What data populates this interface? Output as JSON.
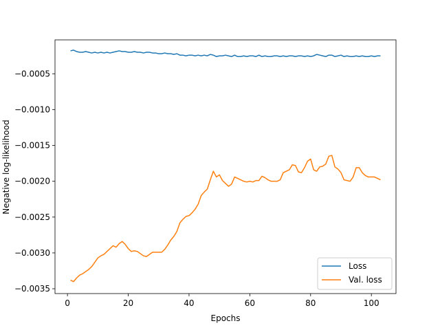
{
  "chart_data": {
    "type": "line",
    "xlabel": "Epochs",
    "ylabel": "Negative log-likelihood",
    "x": [
      1,
      2,
      3,
      4,
      5,
      6,
      7,
      8,
      9,
      10,
      11,
      12,
      13,
      14,
      15,
      16,
      17,
      18,
      19,
      20,
      21,
      22,
      23,
      24,
      25,
      26,
      27,
      28,
      29,
      30,
      31,
      32,
      33,
      34,
      35,
      36,
      37,
      38,
      39,
      40,
      41,
      42,
      43,
      44,
      45,
      46,
      47,
      48,
      49,
      50,
      51,
      52,
      53,
      54,
      55,
      56,
      57,
      58,
      59,
      60,
      61,
      62,
      63,
      64,
      65,
      66,
      67,
      68,
      69,
      70,
      71,
      72,
      73,
      74,
      75,
      76,
      77,
      78,
      79,
      80,
      81,
      82,
      83,
      84,
      85,
      86,
      87,
      88,
      89,
      90,
      91,
      92,
      93,
      94,
      95,
      96,
      97,
      98,
      99,
      100,
      101,
      102,
      103
    ],
    "series": [
      {
        "name": "Loss",
        "color": "#1f77b4",
        "values": [
          -0.00018,
          -0.00017,
          -0.00019,
          -0.0002,
          -0.0002,
          -0.00019,
          -0.0002,
          -0.00021,
          -0.0002,
          -0.00021,
          -0.0002,
          -0.00021,
          -0.0002,
          -0.00021,
          -0.0002,
          -0.00019,
          -0.00018,
          -0.00019,
          -0.00019,
          -0.0002,
          -0.0002,
          -0.00019,
          -0.0002,
          -0.0002,
          -0.00021,
          -0.0002,
          -0.0002,
          -0.00021,
          -0.00021,
          -0.00022,
          -0.00022,
          -0.00021,
          -0.00022,
          -0.00022,
          -0.00023,
          -0.00022,
          -0.00024,
          -0.00024,
          -0.00025,
          -0.00024,
          -0.00024,
          -0.00025,
          -0.00024,
          -0.00025,
          -0.00024,
          -0.00025,
          -0.00023,
          -0.00024,
          -0.00026,
          -0.00025,
          -0.00025,
          -0.00024,
          -0.00025,
          -0.00026,
          -0.00024,
          -0.00026,
          -0.00026,
          -0.00025,
          -0.00026,
          -0.00025,
          -0.00025,
          -0.00026,
          -0.00024,
          -0.00026,
          -0.00025,
          -0.00026,
          -0.00026,
          -0.00025,
          -0.00025,
          -0.00026,
          -0.00025,
          -0.00026,
          -0.00025,
          -0.00025,
          -0.00026,
          -0.00025,
          -0.00025,
          -0.00026,
          -0.00025,
          -0.00026,
          -0.00025,
          -0.00023,
          -0.00024,
          -0.00025,
          -0.00026,
          -0.00024,
          -0.00024,
          -0.00026,
          -0.00025,
          -0.00024,
          -0.00026,
          -0.00025,
          -0.00026,
          -0.00026,
          -0.00025,
          -0.00026,
          -0.00025,
          -0.00026,
          -0.00026,
          -0.00025,
          -0.00026,
          -0.00025,
          -0.00025
        ]
      },
      {
        "name": "Val. loss",
        "color": "#ff7f0e",
        "values": [
          -0.00338,
          -0.0034,
          -0.00335,
          -0.00331,
          -0.00329,
          -0.00326,
          -0.00323,
          -0.00319,
          -0.00313,
          -0.00307,
          -0.00304,
          -0.00302,
          -0.00298,
          -0.00294,
          -0.0029,
          -0.00292,
          -0.00287,
          -0.00284,
          -0.00288,
          -0.00294,
          -0.00298,
          -0.00297,
          -0.00298,
          -0.00301,
          -0.00304,
          -0.00305,
          -0.00302,
          -0.00299,
          -0.00299,
          -0.00299,
          -0.00299,
          -0.00295,
          -0.00289,
          -0.00282,
          -0.00277,
          -0.0027,
          -0.00258,
          -0.00253,
          -0.00249,
          -0.00248,
          -0.00244,
          -0.00239,
          -0.00232,
          -0.0022,
          -0.00215,
          -0.00211,
          -0.00198,
          -0.00186,
          -0.00194,
          -0.00191,
          -0.00199,
          -0.00203,
          -0.00207,
          -0.00204,
          -0.00194,
          -0.00196,
          -0.00198,
          -0.002,
          -0.00201,
          -0.002,
          -0.00201,
          -0.00199,
          -0.00199,
          -0.00193,
          -0.00195,
          -0.00198,
          -0.002,
          -0.002,
          -0.002,
          -0.00198,
          -0.00188,
          -0.00186,
          -0.00184,
          -0.00177,
          -0.00178,
          -0.00187,
          -0.00188,
          -0.00181,
          -0.00172,
          -0.00169,
          -0.00184,
          -0.00186,
          -0.0018,
          -0.00179,
          -0.00176,
          -0.00165,
          -0.00164,
          -0.0018,
          -0.00183,
          -0.00188,
          -0.00198,
          -0.00199,
          -0.002,
          -0.00194,
          -0.00181,
          -0.00181,
          -0.00188,
          -0.00192,
          -0.00194,
          -0.00194,
          -0.00194,
          -0.00196,
          -0.00198
        ]
      }
    ],
    "xlim": [
      -4.1,
      108.1
    ],
    "xticks": [
      0,
      20,
      40,
      60,
      80,
      100
    ],
    "ylim": [
      -0.003567,
      -2.7e-05
    ],
    "yticks": [
      {
        "value": -0.0035,
        "label": "−0.0035"
      },
      {
        "value": -0.003,
        "label": "−0.0030"
      },
      {
        "value": -0.0025,
        "label": "−0.0025"
      },
      {
        "value": -0.002,
        "label": "−0.0020"
      },
      {
        "value": -0.0015,
        "label": "−0.0015"
      },
      {
        "value": -0.001,
        "label": "−0.0010"
      },
      {
        "value": -0.0005,
        "label": "−0.0005"
      }
    ],
    "legend": "lower right",
    "grid": false
  }
}
